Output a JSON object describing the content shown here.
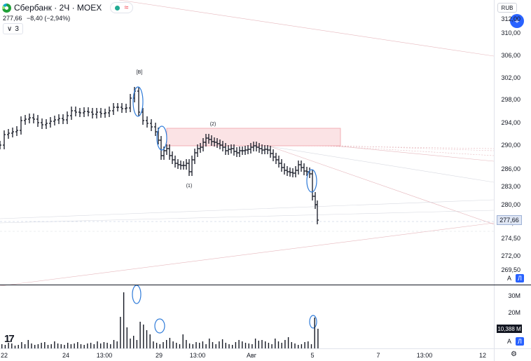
{
  "header": {
    "title": "Сбербанк · 2Ч · MOEX",
    "price": "277,66",
    "change": "−8,40 (−2,94%)",
    "indicators_count": "3",
    "toggle_glyph": "∨",
    "market_status_icon": "green-dot-icon",
    "wave_icon": "≈"
  },
  "price_axis": {
    "currency": "RUB",
    "ticks": [
      "312,00",
      "310,00",
      "306,00",
      "302,00",
      "298,00",
      "294,00",
      "290,00",
      "286,00",
      "283,00",
      "280,00",
      "277,00",
      "274,50",
      "272,00",
      "269,50"
    ],
    "last_price": "277,66",
    "gear_glyph": "⌖",
    "auto_label": "A",
    "log_label": "Л"
  },
  "volume_axis": {
    "ticks": [
      "30M",
      "20M"
    ],
    "last_volume": "10,388 M",
    "auto_label": "A",
    "log_label": "Л"
  },
  "time_axis": {
    "ticks": [
      "22",
      "24",
      "13:00",
      "29",
      "13:00",
      "Авг",
      "5",
      "7",
      "13:00",
      "12"
    ],
    "settings_glyph": "⚙"
  },
  "annotations": {
    "wave_b": "[B]",
    "wave_2": "(2)",
    "wave_1": "(1)"
  },
  "brand": {
    "logo_text": "17"
  },
  "colors": {
    "bars": "#131722",
    "zone": "#f7c9cc",
    "circle": "#2f7bd9",
    "accent": "#2962ff"
  }
}
